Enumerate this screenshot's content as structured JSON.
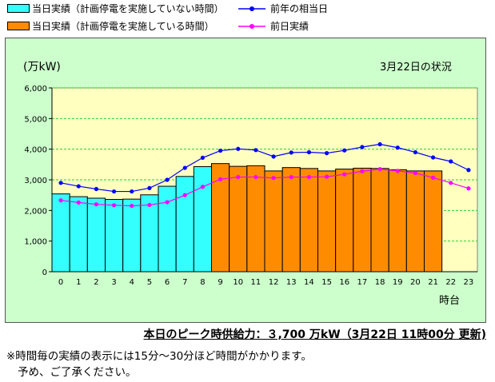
{
  "legend": {
    "items": [
      {
        "label": "当日実績（計画停電を実施していない時間）",
        "color": "#33ffff",
        "kind": "bar"
      },
      {
        "label": "当日実績（計画停電を実施している時間）",
        "color": "#ff8c00",
        "kind": "bar"
      },
      {
        "label": "前年の相当日",
        "color": "#0000ff",
        "kind": "line"
      },
      {
        "label": "前日実績",
        "color": "#ff00ff",
        "kind": "line"
      }
    ]
  },
  "chart": {
    "unit_label": "(万kW)",
    "date_label": "3月22日の状況",
    "xaxis_label": "時台",
    "plot_bg": "#ffffc0",
    "frame_bg": "#ccffcc"
  },
  "chart_data": {
    "type": "bar",
    "categories": [
      "0",
      "1",
      "2",
      "3",
      "4",
      "5",
      "6",
      "7",
      "8",
      "9",
      "10",
      "11",
      "12",
      "13",
      "14",
      "15",
      "16",
      "17",
      "18",
      "19",
      "20",
      "21",
      "22",
      "23"
    ],
    "ylim": [
      0,
      6000
    ],
    "yticks": [
      0,
      1000,
      2000,
      3000,
      4000,
      5000,
      6000
    ],
    "ytick_labels": [
      "0",
      "1,000",
      "2,000",
      "3,000",
      "4,000",
      "5,000",
      "6,000"
    ],
    "grid": true,
    "legend_position": "top",
    "xlabel": "時台",
    "ylabel": "(万kW)",
    "title": "3月22日の状況",
    "series": [
      {
        "name": "当日実績（計画停電を実施していない時間）",
        "type": "bar",
        "color": "#33ffff",
        "values": [
          2540,
          2450,
          2400,
          2360,
          2370,
          2510,
          2790,
          3110,
          3430,
          null,
          null,
          null,
          null,
          null,
          null,
          null,
          null,
          null,
          null,
          null,
          null,
          null,
          null,
          null
        ]
      },
      {
        "name": "当日実績（計画停電を実施している時間）",
        "type": "bar",
        "color": "#ff8c00",
        "values": [
          null,
          null,
          null,
          null,
          null,
          null,
          null,
          null,
          null,
          3530,
          3440,
          3460,
          3290,
          3400,
          3370,
          3290,
          3350,
          3380,
          3370,
          3330,
          3290,
          3290,
          null,
          null
        ]
      },
      {
        "name": "前年の相当日",
        "type": "line",
        "color": "#0000ff",
        "values": [
          2900,
          2790,
          2700,
          2620,
          2620,
          2730,
          3000,
          3390,
          3720,
          3950,
          4010,
          3970,
          3760,
          3890,
          3900,
          3870,
          3960,
          4070,
          4160,
          4050,
          3900,
          3730,
          3600,
          3320
        ]
      },
      {
        "name": "前日実績",
        "type": "line",
        "color": "#ff00ff",
        "values": [
          2330,
          2260,
          2200,
          2170,
          2150,
          2180,
          2270,
          2500,
          2770,
          3020,
          3090,
          3090,
          3060,
          3090,
          3090,
          3100,
          3180,
          3280,
          3350,
          3290,
          3220,
          3070,
          2900,
          2720
        ]
      }
    ]
  },
  "peak": {
    "text": "本日のピーク時供給力：３,700 万kW（3月22日 11時00分 更新)"
  },
  "note": {
    "line1": "※時間毎の実績の表示には15分～30分ほど時間がかかります。",
    "line2": "予め、ご了承ください。"
  }
}
